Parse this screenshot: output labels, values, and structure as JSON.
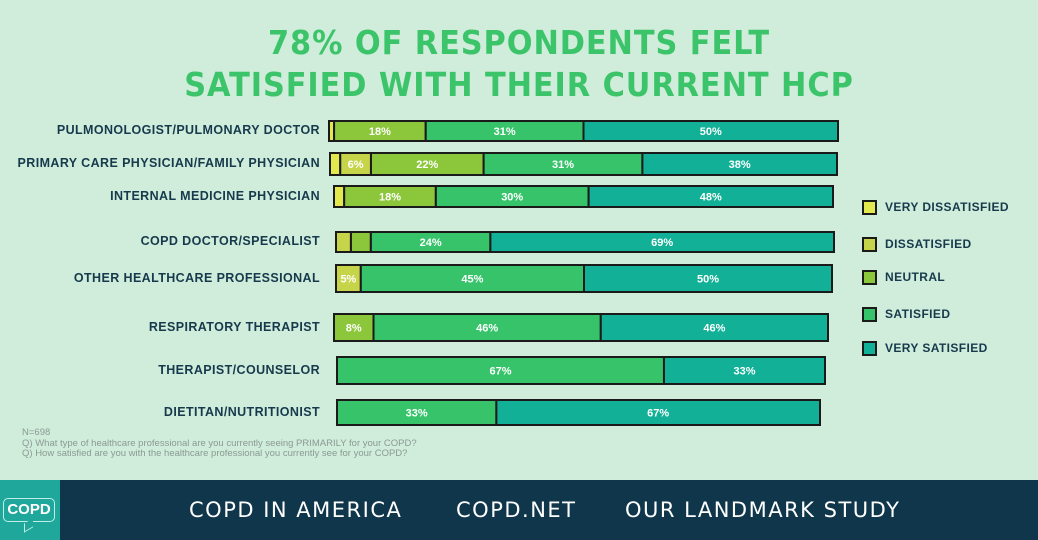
{
  "chart_data": {
    "type": "bar",
    "orientation": "horizontal",
    "stacked": true,
    "title": "78% OF RESPONDENTS FELT SATISFIED WITH THEIR CURRENT HCP",
    "title_lines": [
      "78% OF RESPONDENTS FELT",
      "SATISFIED WITH THEIR CURRENT HCP"
    ],
    "xlabel": "",
    "ylabel": "",
    "xlim": [
      0,
      100
    ],
    "grid": false,
    "legend_position": "right",
    "categories": [
      "PULMONOLOGIST/PULMONARY DOCTOR",
      "PRIMARY CARE PHYSICIAN/FAMILY PHYSICIAN",
      "INTERNAL MEDICINE PHYSICIAN",
      "COPD DOCTOR/SPECIALIST",
      "OTHER HEALTHCARE PROFESSIONAL",
      "RESPIRATORY THERAPIST",
      "THERAPIST/COUNSELOR",
      "DIETITAN/NUTRITIONIST"
    ],
    "series": [
      {
        "name": "VERY DISSATISFIED",
        "color": "#e3e84e",
        "values": [
          1,
          2,
          2,
          0,
          0,
          0,
          0,
          0
        ]
      },
      {
        "name": "DISSATISFIED",
        "color": "#c5d448",
        "values": [
          0,
          6,
          0,
          3,
          5,
          0,
          0,
          0
        ]
      },
      {
        "name": "NEUTRAL",
        "color": "#8cc63a",
        "values": [
          18,
          22,
          18,
          4,
          0,
          8,
          0,
          0
        ]
      },
      {
        "name": "SATISFIED",
        "color": "#37c36a",
        "values": [
          31,
          31,
          30,
          24,
          45,
          46,
          67,
          33
        ]
      },
      {
        "name": "VERY SATISFIED",
        "color": "#12b096",
        "values": [
          50,
          38,
          48,
          69,
          50,
          46,
          33,
          67
        ]
      }
    ],
    "data_labels": [
      [
        null,
        null,
        "18%",
        "31%",
        "50%"
      ],
      [
        null,
        "6%",
        "22%",
        "31%",
        "38%"
      ],
      [
        null,
        null,
        "18%",
        "30%",
        "48%"
      ],
      [
        null,
        null,
        null,
        "24%",
        "69%"
      ],
      [
        null,
        "5%",
        null,
        "45%",
        "50%"
      ],
      [
        null,
        null,
        "8%",
        "46%",
        "46%"
      ],
      [
        null,
        null,
        null,
        "67%",
        "33%"
      ],
      [
        null,
        null,
        null,
        "33%",
        "67%"
      ]
    ]
  },
  "notes": {
    "n": "N=698",
    "q1": "Q) What type of healthcare professional are you currently seeing PRIMARILY for your COPD?",
    "q2": "Q) How satisfied are you with the healthcare professional you currently see for your COPD?"
  },
  "footer": {
    "logo_text": "COPD",
    "links": [
      "COPD IN AMERICA",
      "COPD.NET",
      "OUR LANDMARK STUDY"
    ],
    "background": "#0f364a",
    "logo_color": "#1ea79a"
  },
  "colors": {
    "background": "#d0ecdb",
    "title": "#3cc46a",
    "label": "#163a4c"
  }
}
